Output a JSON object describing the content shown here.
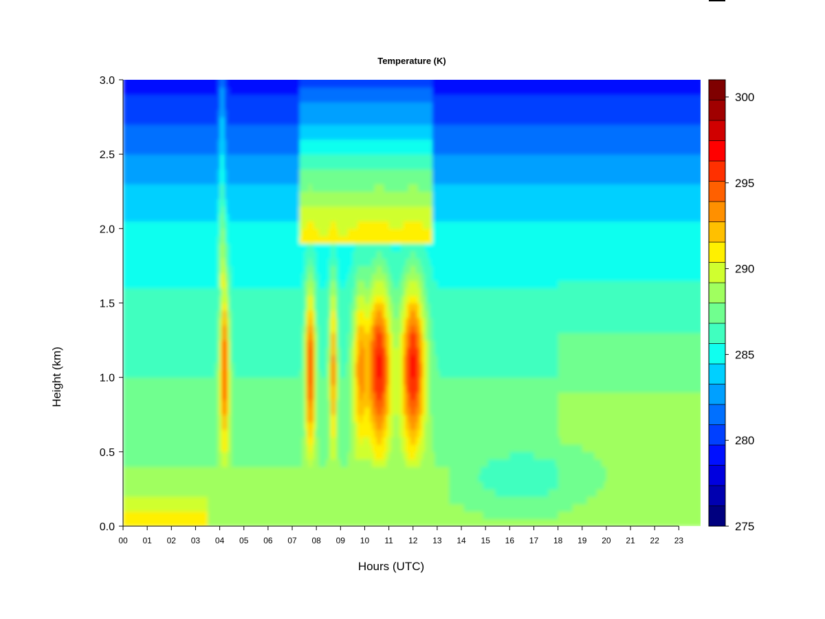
{
  "chart_data": {
    "type": "heatmap",
    "title": "Temperature (K)",
    "xlabel": "Hours (UTC)",
    "ylabel": "Height (km)",
    "xlim": [
      0,
      23.9
    ],
    "ylim": [
      0.0,
      3.0
    ],
    "x_ticks": [
      "00",
      "01",
      "02",
      "03",
      "04",
      "05",
      "06",
      "07",
      "08",
      "09",
      "10",
      "11",
      "12",
      "13",
      "14",
      "15",
      "16",
      "17",
      "18",
      "19",
      "20",
      "21",
      "22",
      "23"
    ],
    "y_ticks": [
      "0.0",
      "0.5",
      "1.0",
      "1.5",
      "2.0",
      "2.5",
      "3.0"
    ],
    "colorbar": {
      "min": 275,
      "max": 301,
      "ticks": [
        "275",
        "280",
        "285",
        "290",
        "295",
        "300"
      ],
      "colors": [
        "#00007F",
        "#0000B0",
        "#0000DF",
        "#0010FF",
        "#0040FF",
        "#0070FF",
        "#00A0FF",
        "#00D0FF",
        "#10FFEF",
        "#40FFBF",
        "#70FF8F",
        "#A0FF5F",
        "#D0FF2F",
        "#FFF000",
        "#FFC000",
        "#FF9000",
        "#FF6000",
        "#FF3000",
        "#FF0000",
        "#D00000",
        "#A00000",
        "#7F0000"
      ]
    }
  }
}
